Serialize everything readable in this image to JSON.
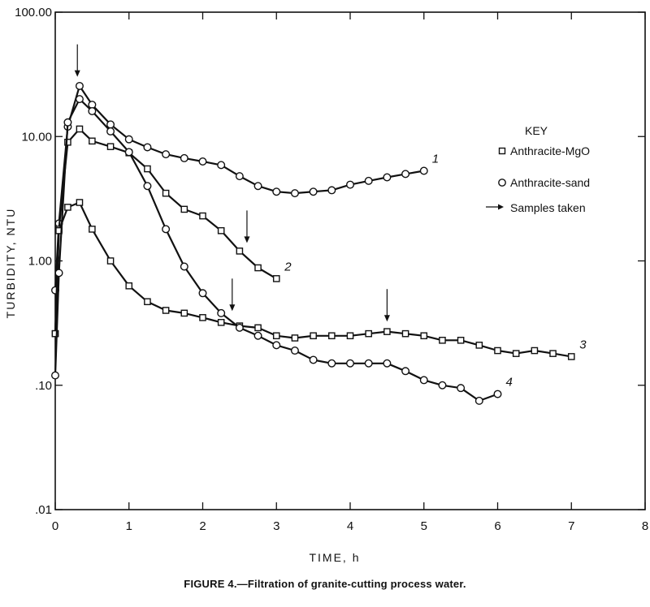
{
  "chart_data": {
    "type": "line",
    "title": "",
    "caption": "FIGURE 4.—Filtration of granite-cutting process water.",
    "xlabel": "TIME, h",
    "ylabel": "TURBIDITY, NTU",
    "xlim": [
      0,
      8
    ],
    "ylim": [
      0.01,
      100
    ],
    "yscale": "log",
    "grid": false,
    "x_ticks": [
      "0",
      "1",
      "2",
      "3",
      "4",
      "5",
      "6",
      "7",
      "8"
    ],
    "y_ticks": [
      {
        "value": 100,
        "label": "100.00"
      },
      {
        "value": 10,
        "label": "10.00"
      },
      {
        "value": 1,
        "label": "1.00"
      },
      {
        "value": 0.1,
        "label": ".10"
      },
      {
        "value": 0.01,
        "label": ".01"
      }
    ],
    "legend": {
      "title": "KEY",
      "position": "right",
      "entries": [
        {
          "marker": "square",
          "label": "Anthracite-MgO"
        },
        {
          "marker": "circle",
          "label": "Anthracite-sand"
        },
        {
          "marker": "arrow",
          "label": "Samples taken"
        }
      ]
    },
    "series": [
      {
        "label": "1",
        "marker": "circle",
        "x": [
          0.0,
          0.05,
          0.17,
          0.33,
          0.5,
          0.75,
          1.0,
          1.25,
          1.5,
          1.75,
          2.0,
          2.25,
          2.5,
          2.75,
          3.0,
          3.25,
          3.5,
          3.75,
          4.0,
          4.25,
          4.5,
          4.75,
          5.0
        ],
        "y": [
          0.58,
          2.0,
          12.0,
          25.5,
          18.0,
          12.5,
          9.5,
          8.2,
          7.2,
          6.7,
          6.3,
          5.9,
          4.8,
          4.0,
          3.6,
          3.5,
          3.6,
          3.7,
          4.1,
          4.4,
          4.7,
          5.0,
          5.3
        ]
      },
      {
        "label": "2",
        "marker": "square",
        "x": [
          0.0,
          0.05,
          0.17,
          0.33,
          0.5,
          0.75,
          1.0,
          1.25,
          1.5,
          1.75,
          2.0,
          2.25,
          2.5,
          2.75,
          3.0
        ],
        "y": [
          0.26,
          1.8,
          9.0,
          11.5,
          9.2,
          8.3,
          7.4,
          5.5,
          3.5,
          2.6,
          2.3,
          1.75,
          1.2,
          0.88,
          0.72
        ]
      },
      {
        "label": "3",
        "marker": "square",
        "x": [
          0.0,
          0.05,
          0.17,
          0.33,
          0.5,
          0.75,
          1.0,
          1.25,
          1.5,
          1.75,
          2.0,
          2.25,
          2.5,
          2.75,
          3.0,
          3.25,
          3.5,
          3.75,
          4.0,
          4.25,
          4.5,
          4.75,
          5.0,
          5.25,
          5.5,
          5.75,
          6.0,
          6.25,
          6.5,
          6.75,
          7.0
        ],
        "y": [
          0.26,
          1.75,
          2.7,
          2.95,
          1.8,
          1.0,
          0.63,
          0.47,
          0.4,
          0.38,
          0.35,
          0.32,
          0.3,
          0.29,
          0.25,
          0.24,
          0.25,
          0.25,
          0.25,
          0.26,
          0.27,
          0.26,
          0.25,
          0.23,
          0.23,
          0.21,
          0.19,
          0.18,
          0.19,
          0.18,
          0.17
        ]
      },
      {
        "label": "4",
        "marker": "circle",
        "x": [
          0.0,
          0.05,
          0.17,
          0.33,
          0.5,
          0.75,
          1.0,
          1.25,
          1.5,
          1.75,
          2.0,
          2.25,
          2.5,
          2.75,
          3.0,
          3.25,
          3.5,
          3.75,
          4.0,
          4.25,
          4.5,
          4.75,
          5.0,
          5.25,
          5.5,
          5.75,
          6.0
        ],
        "y": [
          0.12,
          0.8,
          13.0,
          20.0,
          16.0,
          11.0,
          7.5,
          4.0,
          1.8,
          0.9,
          0.55,
          0.38,
          0.29,
          0.25,
          0.21,
          0.19,
          0.16,
          0.15,
          0.15,
          0.15,
          0.15,
          0.13,
          0.11,
          0.1,
          0.095,
          0.075,
          0.085
        ]
      }
    ],
    "samples_taken": [
      {
        "x": 0.3,
        "y": 26.0
      },
      {
        "x": 2.6,
        "y": 1.2
      },
      {
        "x": 2.4,
        "y": 0.34
      },
      {
        "x": 4.5,
        "y": 0.28
      }
    ]
  }
}
